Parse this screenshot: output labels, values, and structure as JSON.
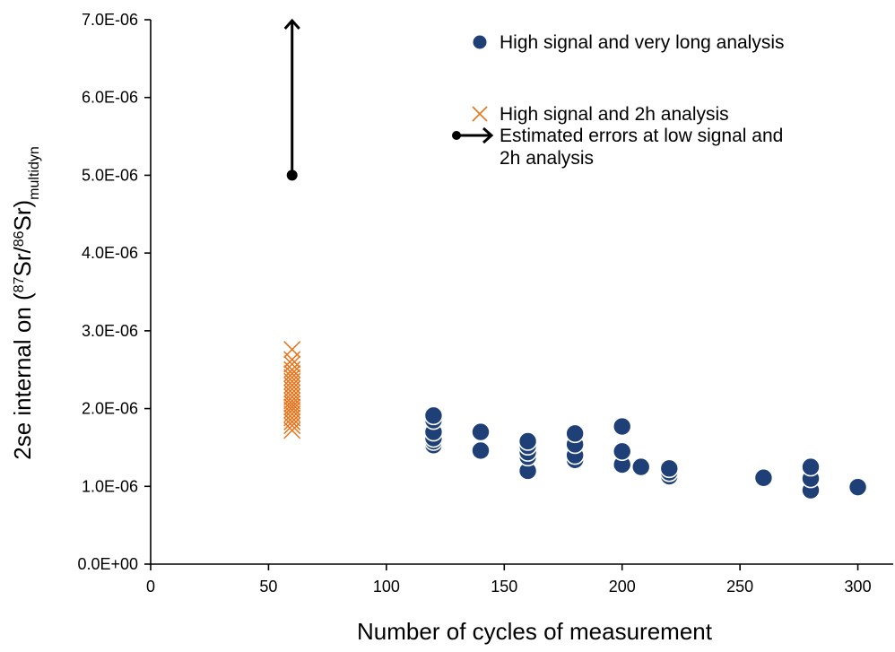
{
  "chart_data": {
    "type": "scatter",
    "xlabel": "Number of cycles of measurement",
    "ylabel": {
      "prefix": "2se  internal on (",
      "sup1": "87",
      "mid1": "Sr/",
      "sup2": "86",
      "mid2": "Sr)",
      "sub": "multidyn"
    },
    "xlim": [
      0,
      315
    ],
    "ylim": [
      0,
      7e-06
    ],
    "xticks": [
      {
        "value": 0,
        "label": "0"
      },
      {
        "value": 50,
        "label": "50"
      },
      {
        "value": 100,
        "label": "100"
      },
      {
        "value": 150,
        "label": "150"
      },
      {
        "value": 200,
        "label": "200"
      },
      {
        "value": 250,
        "label": "250"
      },
      {
        "value": 300,
        "label": "300"
      }
    ],
    "yticks": [
      {
        "value": 0,
        "label": "0.0E+00"
      },
      {
        "value": 1e-06,
        "label": "1.0E-06"
      },
      {
        "value": 2e-06,
        "label": "2.0E-06"
      },
      {
        "value": 3e-06,
        "label": "3.0E-06"
      },
      {
        "value": 4e-06,
        "label": "4.0E-06"
      },
      {
        "value": 5e-06,
        "label": "5.0E-06"
      },
      {
        "value": 6e-06,
        "label": "6.0E-06"
      },
      {
        "value": 7e-06,
        "label": "7.0E-06"
      }
    ],
    "grid": false,
    "legend_position": "top-right",
    "series": [
      {
        "name": "High signal and very long analysis",
        "marker": "circle",
        "color": "#1F3F77",
        "points": [
          {
            "x": 120,
            "y": 1.53e-06
          },
          {
            "x": 120,
            "y": 1.58e-06
          },
          {
            "x": 120,
            "y": 1.62e-06
          },
          {
            "x": 120,
            "y": 1.7e-06
          },
          {
            "x": 120,
            "y": 1.85e-06
          },
          {
            "x": 120,
            "y": 1.91e-06
          },
          {
            "x": 140,
            "y": 1.46e-06
          },
          {
            "x": 140,
            "y": 1.7e-06
          },
          {
            "x": 160,
            "y": 1.2e-06
          },
          {
            "x": 160,
            "y": 1.38e-06
          },
          {
            "x": 160,
            "y": 1.44e-06
          },
          {
            "x": 160,
            "y": 1.52e-06
          },
          {
            "x": 160,
            "y": 1.58e-06
          },
          {
            "x": 180,
            "y": 1.34e-06
          },
          {
            "x": 180,
            "y": 1.4e-06
          },
          {
            "x": 180,
            "y": 1.54e-06
          },
          {
            "x": 180,
            "y": 1.68e-06
          },
          {
            "x": 200,
            "y": 1.28e-06
          },
          {
            "x": 200,
            "y": 1.45e-06
          },
          {
            "x": 200,
            "y": 1.77e-06
          },
          {
            "x": 208,
            "y": 1.25e-06
          },
          {
            "x": 220,
            "y": 1.13e-06
          },
          {
            "x": 220,
            "y": 1.18e-06
          },
          {
            "x": 220,
            "y": 1.23e-06
          },
          {
            "x": 260,
            "y": 1.11e-06
          },
          {
            "x": 280,
            "y": 9.5e-07
          },
          {
            "x": 280,
            "y": 1.1e-06
          },
          {
            "x": 280,
            "y": 1.25e-06
          },
          {
            "x": 300,
            "y": 9.9e-07
          }
        ]
      },
      {
        "name": "High signal and 2h analysis",
        "marker": "x",
        "color": "#E8731A",
        "points": [
          {
            "x": 60,
            "y": 1.72e-06
          },
          {
            "x": 60,
            "y": 1.78e-06
          },
          {
            "x": 60,
            "y": 1.83e-06
          },
          {
            "x": 60,
            "y": 1.88e-06
          },
          {
            "x": 60,
            "y": 1.93e-06
          },
          {
            "x": 60,
            "y": 1.98e-06
          },
          {
            "x": 60,
            "y": 2.02e-06
          },
          {
            "x": 60,
            "y": 2.06e-06
          },
          {
            "x": 60,
            "y": 2.1e-06
          },
          {
            "x": 60,
            "y": 2.15e-06
          },
          {
            "x": 60,
            "y": 2.2e-06
          },
          {
            "x": 60,
            "y": 2.25e-06
          },
          {
            "x": 60,
            "y": 2.3e-06
          },
          {
            "x": 60,
            "y": 2.35e-06
          },
          {
            "x": 60,
            "y": 2.4e-06
          },
          {
            "x": 60,
            "y": 2.45e-06
          },
          {
            "x": 60,
            "y": 2.5e-06
          },
          {
            "x": 60,
            "y": 2.57e-06
          },
          {
            "x": 60,
            "y": 2.63e-06
          },
          {
            "x": 60,
            "y": 2.76e-06
          }
        ]
      },
      {
        "name": "Estimated errors at low signal and 2h analysis",
        "marker": "arrow",
        "color": "#000000",
        "from": {
          "x": 60,
          "y": 5e-06
        },
        "to": {
          "x": 60,
          "y": 7e-06
        }
      }
    ]
  }
}
